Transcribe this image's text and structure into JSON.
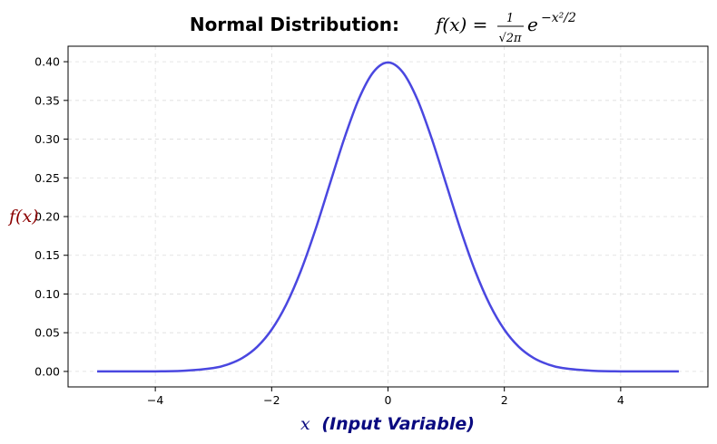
{
  "chart_data": {
    "type": "line",
    "title_text": "Normal Distribution:",
    "title_formula": {
      "lhs": "f(x) =",
      "frac_num": "1",
      "frac_den": "√2π",
      "base": "e",
      "exponent": "−x²/2"
    },
    "xlabel": {
      "var": "x",
      "text": "(Input Variable)"
    },
    "ylabel": "f(x)",
    "xlim": [
      -5.5,
      5.5
    ],
    "ylim": [
      -0.02,
      0.42
    ],
    "xticks": [
      -4,
      -2,
      0,
      2,
      4
    ],
    "xtick_labels": [
      "−4",
      "−2",
      "0",
      "2",
      "4"
    ],
    "yticks": [
      0.0,
      0.05,
      0.1,
      0.15,
      0.2,
      0.25,
      0.3,
      0.35,
      0.4
    ],
    "ytick_labels": [
      "0.00",
      "0.05",
      "0.10",
      "0.15",
      "0.20",
      "0.25",
      "0.30",
      "0.35",
      "0.40"
    ],
    "grid": true,
    "series": [
      {
        "x": [
          -5.0,
          -4.5,
          -4.0,
          -3.5,
          -3.0,
          -2.75,
          -2.5,
          -2.25,
          -2.0,
          -1.75,
          -1.5,
          -1.25,
          -1.0,
          -0.75,
          -0.5,
          -0.25,
          0.0,
          0.25,
          0.5,
          0.75,
          1.0,
          1.25,
          1.5,
          1.75,
          2.0,
          2.25,
          2.5,
          2.75,
          3.0,
          3.5,
          4.0,
          4.5,
          5.0
        ],
        "y": [
          0.0,
          0.0,
          0.0001,
          0.0009,
          0.0044,
          0.0091,
          0.0175,
          0.0317,
          0.054,
          0.0863,
          0.1295,
          0.1826,
          0.242,
          0.3011,
          0.3521,
          0.3867,
          0.3989,
          0.3867,
          0.3521,
          0.3011,
          0.242,
          0.1826,
          0.1295,
          0.0863,
          0.054,
          0.0317,
          0.0175,
          0.0091,
          0.0044,
          0.0009,
          0.0001,
          0.0,
          0.0
        ]
      }
    ],
    "colors": {
      "line": "#4a47e0",
      "xlabel": "#0a0a80",
      "ylabel": "#8b0000",
      "grid": "#dddddd",
      "axes": "#000000"
    }
  }
}
